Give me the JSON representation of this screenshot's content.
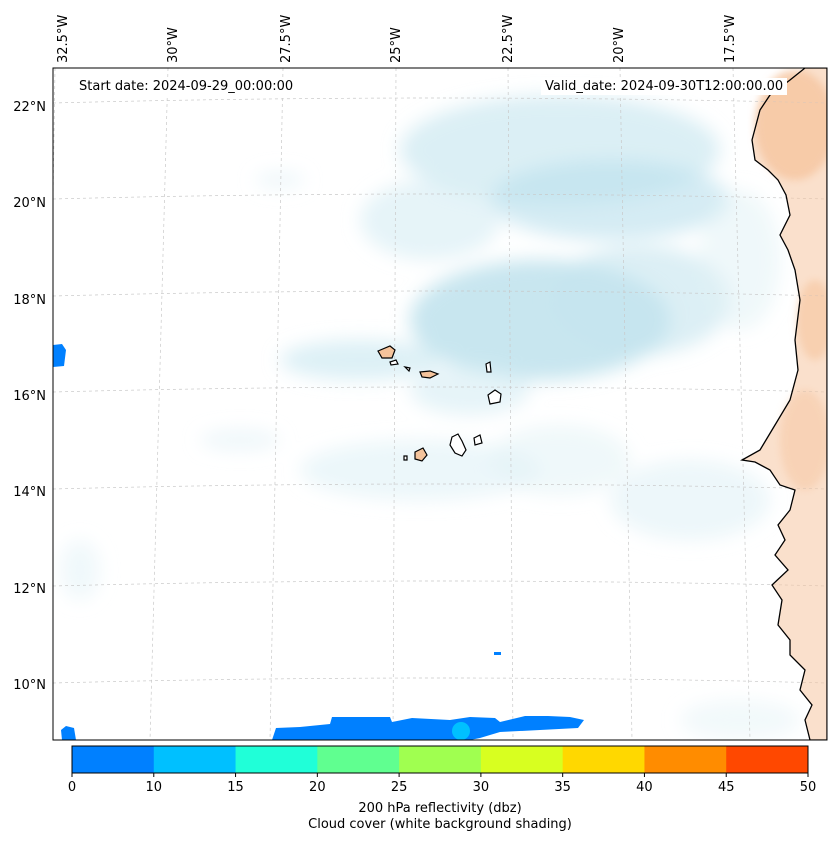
{
  "map": {
    "start_date": "Start date: 2024-09-29_00:00:00",
    "valid_date": "Valid_date: 2024-09-30T12:00:00.00",
    "lon_labels": [
      "32.5°W",
      "30°W",
      "27.5°W",
      "25°W",
      "22.5°W",
      "20°W",
      "17.5°W"
    ],
    "lat_labels": [
      "22°N",
      "20°N",
      "18°N",
      "16°N",
      "14°N",
      "12°N",
      "10°N"
    ],
    "features": [
      "cape-verde-islands",
      "west-african-coast",
      "cloud-cover-shading",
      "reflectivity-patches"
    ]
  },
  "colorbar": {
    "ticks": [
      "0",
      "10",
      "15",
      "20",
      "25",
      "30",
      "35",
      "40",
      "45",
      "50"
    ],
    "colors": [
      "#0080ff",
      "#00c0ff",
      "#20ffd8",
      "#60ff90",
      "#a0ff50",
      "#d8ff20",
      "#ffd800",
      "#ff8c00",
      "#ff4800"
    ],
    "label_line1": "200 hPa reflectivity (dbz)",
    "label_line2": "Cloud cover (white background shading)"
  }
}
